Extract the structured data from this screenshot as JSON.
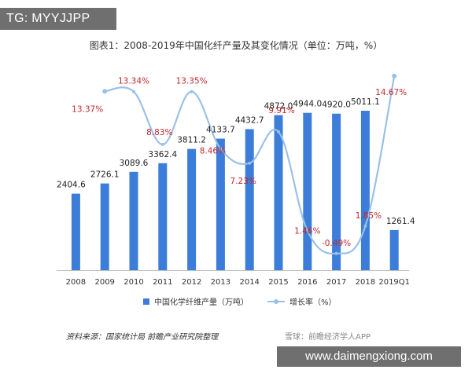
{
  "overlay": {
    "tg_tag": "TG: MYYJJPP",
    "site_banner": "www.daimengxiong.com",
    "watermark": "雪球：前瞻经济学人APP"
  },
  "source": "资料来源：国家统计局 前瞻产业研究院整理",
  "chart_data": {
    "type": "bar",
    "title": "图表1：2008-2019年中国化纤产量及其变化情况（单位：万吨，%）",
    "categories": [
      "2008",
      "2009",
      "2010",
      "2011",
      "2012",
      "2013",
      "2014",
      "2015",
      "2016",
      "2017",
      "2018",
      "2019Q1"
    ],
    "series": [
      {
        "name": "中国化学纤维产量（万吨）",
        "type": "bar",
        "color": "#3b7dd8",
        "values": [
          2404.6,
          2726.1,
          3089.6,
          3362.4,
          3811.2,
          4133.7,
          4432.7,
          4872.0,
          4944.0,
          4920.0,
          5011.1,
          1261.4
        ],
        "labels": [
          "2404.6",
          "2726.1",
          "3089.6",
          "3362.4",
          "3811.2",
          "4133.7",
          "4432.7",
          "4872.0",
          "4944.0",
          "4920.0",
          "5011.1",
          "1261.4"
        ]
      },
      {
        "name": "增长率（%）",
        "type": "line",
        "smooth": true,
        "color": "#9cc0e8",
        "values": [
          null,
          13.37,
          13.34,
          8.83,
          13.35,
          8.46,
          7.23,
          9.91,
          1.46,
          -0.49,
          1.85,
          14.67
        ],
        "labels": [
          "",
          "13.37%",
          "13.34%",
          "8.83%",
          "13.35%",
          "8.46%",
          "7.23%",
          "9.91%",
          "1.46%",
          "-0.49%",
          "1.85%",
          "14.67%"
        ],
        "label_color": "#c0292f"
      }
    ],
    "ylim_bar": [
      0,
      5600
    ],
    "ylim_line": [
      -2,
      16
    ],
    "legend_position": "bottom",
    "grid": false
  }
}
